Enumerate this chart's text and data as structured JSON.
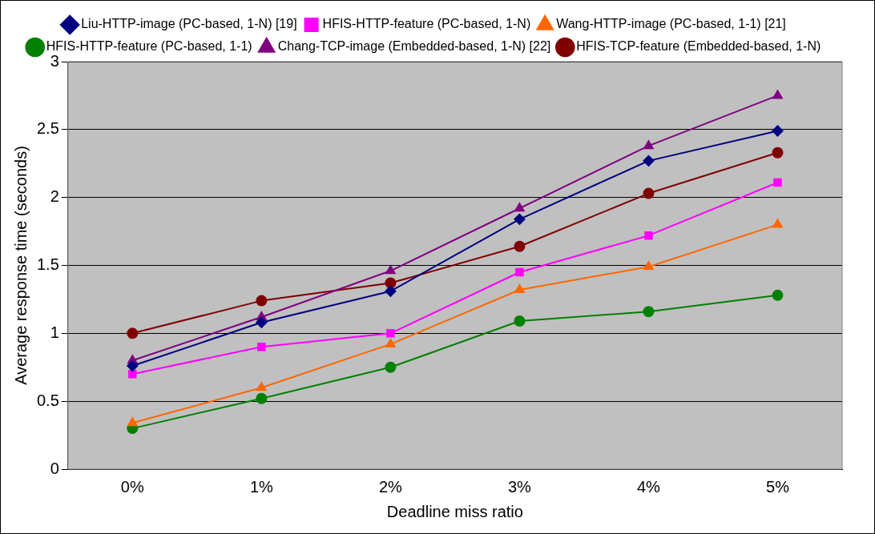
{
  "chart_data": {
    "type": "line",
    "xlabel": "Deadline miss ratio",
    "ylabel": "Average response time (seconds)",
    "categories": [
      "0%",
      "1%",
      "2%",
      "3%",
      "4%",
      "5%"
    ],
    "series": [
      {
        "name": "Liu-HTTP-image (PC-based, 1-N) [19]",
        "color": "#000080",
        "marker": "diamond",
        "values": [
          0.76,
          1.08,
          1.31,
          1.84,
          2.27,
          2.49
        ]
      },
      {
        "name": "HFIS-HTTP-feature (PC-based, 1-N)",
        "color": "#ff00ff",
        "marker": "square",
        "values": [
          0.7,
          0.9,
          1.0,
          1.45,
          1.72,
          2.11
        ]
      },
      {
        "name": "Wang-HTTP-image (PC-based, 1-1) [21]",
        "color": "#ff6600",
        "marker": "triangle",
        "values": [
          0.34,
          0.6,
          0.92,
          1.32,
          1.49,
          1.8
        ]
      },
      {
        "name": "HFIS-HTTP-feature (PC-based, 1-1)",
        "color": "#008000",
        "marker": "circle",
        "values": [
          0.3,
          0.52,
          0.75,
          1.09,
          1.16,
          1.28
        ]
      },
      {
        "name": "Chang-TCP-image (Embedded-based, 1-N) [22]",
        "color": "#800080",
        "marker": "triangle",
        "values": [
          0.8,
          1.12,
          1.46,
          1.92,
          2.38,
          2.75
        ]
      },
      {
        "name": "HFIS-TCP-feature (Embedded-based, 1-N)",
        "color": "#800000",
        "marker": "circle",
        "values": [
          1.0,
          1.24,
          1.37,
          1.64,
          2.03,
          2.33
        ]
      }
    ],
    "ylim": [
      0,
      3
    ],
    "yticks": [
      0,
      0.5,
      1,
      1.5,
      2,
      2.5,
      3
    ],
    "grid": "y",
    "legend": "top",
    "line_style": "solid"
  }
}
